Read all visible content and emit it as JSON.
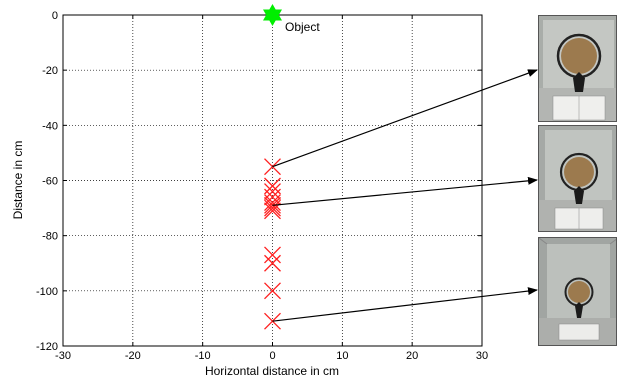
{
  "chart_data": {
    "type": "scatter",
    "xlabel": "Horizontal distance in cm",
    "ylabel": "Distance in cm",
    "xlim": [
      -30,
      30
    ],
    "ylim": [
      -120,
      0
    ],
    "xticks": [
      -30,
      -20,
      -10,
      0,
      10,
      20,
      30
    ],
    "yticks": [
      0,
      -20,
      -40,
      -60,
      -80,
      -100,
      -120
    ],
    "grid": true,
    "object": {
      "x": 0,
      "y": 0,
      "label": "Object",
      "color": "#00ee00"
    },
    "camera_positions": {
      "color": "#ff2020",
      "x": [
        0,
        0,
        0,
        0,
        0,
        0,
        0,
        0,
        0,
        0,
        0,
        0
      ],
      "y": [
        -55,
        -62,
        -64,
        -66,
        -68,
        -69,
        -70,
        -71,
        -87,
        -90,
        -100,
        -111
      ]
    },
    "links": [
      {
        "from_y": -55,
        "photo": 0
      },
      {
        "from_y": -69,
        "photo": 1
      },
      {
        "from_y": -111,
        "photo": 2
      }
    ]
  },
  "photos": [
    "globe-photo",
    "globe-photo",
    "globe-photo"
  ]
}
